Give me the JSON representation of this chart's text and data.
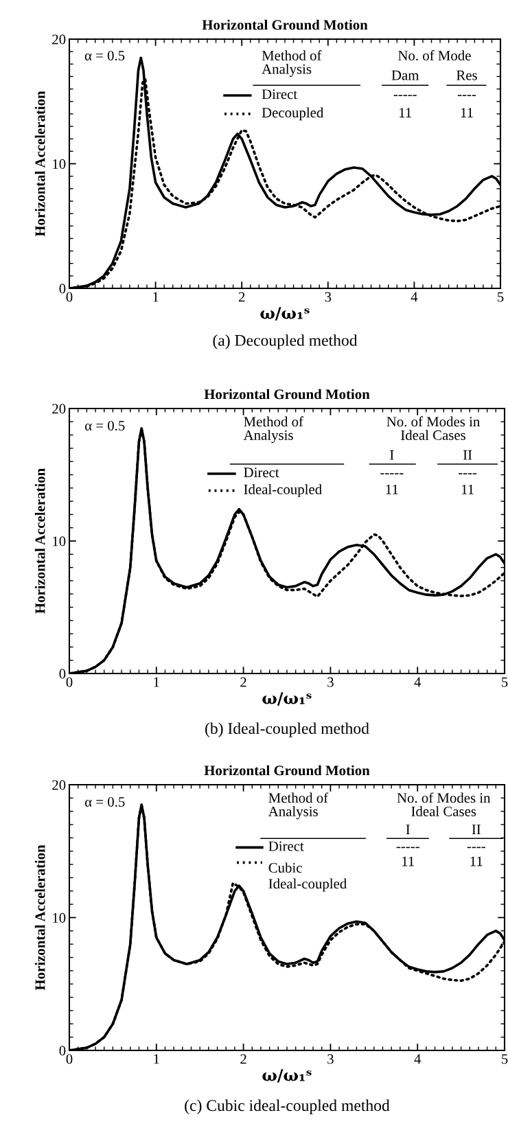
{
  "chart_data": [
    {
      "type": "line",
      "title": "Horizontal Ground Motion",
      "xlabel": "ω/ω₁ˢ",
      "ylabel": "Horizontal Acceleration",
      "annotations": [
        "α = 0.5",
        "Method of\nAnalysis",
        "No. of Mode",
        "Dam",
        "Res",
        "-----",
        "----",
        "11",
        "11",
        "(a) Decoupled method"
      ],
      "xlim": [
        0,
        5
      ],
      "ylim": [
        0,
        20
      ],
      "xticks": [
        0,
        1,
        2,
        3,
        4,
        5
      ],
      "yticks": [
        0,
        10,
        20
      ],
      "grid": false,
      "legend": "top right",
      "series": [
        {
          "name": "Direct",
          "color": "#000000",
          "line_style": "solid",
          "x": [
            0,
            0.2,
            0.3,
            0.4,
            0.5,
            0.6,
            0.7,
            0.75,
            0.8,
            0.83,
            0.86,
            0.9,
            0.95,
            1.0,
            1.1,
            1.2,
            1.35,
            1.5,
            1.6,
            1.7,
            1.8,
            1.9,
            1.95,
            2.0,
            2.1,
            2.2,
            2.3,
            2.4,
            2.5,
            2.6,
            2.7,
            2.75,
            2.8,
            2.85,
            2.9,
            3.0,
            3.1,
            3.2,
            3.3,
            3.4,
            3.5,
            3.6,
            3.7,
            3.8,
            3.9,
            4.0,
            4.1,
            4.2,
            4.3,
            4.4,
            4.5,
            4.6,
            4.7,
            4.8,
            4.9,
            4.95,
            5.0
          ],
          "values": [
            0,
            0.2,
            0.5,
            1.0,
            2.0,
            3.8,
            8.0,
            12.5,
            17.5,
            18.5,
            17.5,
            14,
            10.5,
            8.5,
            7.3,
            6.8,
            6.5,
            6.8,
            7.4,
            8.5,
            10.2,
            12.0,
            12.4,
            12.0,
            10.3,
            8.5,
            7.3,
            6.7,
            6.5,
            6.6,
            6.9,
            6.8,
            6.6,
            6.7,
            7.5,
            8.6,
            9.2,
            9.55,
            9.7,
            9.6,
            9.0,
            8.2,
            7.4,
            6.8,
            6.3,
            6.1,
            5.95,
            5.9,
            5.95,
            6.2,
            6.6,
            7.2,
            8.0,
            8.7,
            9.0,
            8.8,
            8.3
          ]
        },
        {
          "name": "Decoupled",
          "color": "#000000",
          "line_style": "dotted",
          "x": [
            0,
            0.2,
            0.3,
            0.4,
            0.5,
            0.6,
            0.7,
            0.8,
            0.85,
            0.88,
            0.92,
            1.0,
            1.1,
            1.2,
            1.35,
            1.5,
            1.6,
            1.7,
            1.8,
            1.9,
            2.0,
            2.05,
            2.1,
            2.2,
            2.3,
            2.4,
            2.5,
            2.6,
            2.7,
            2.8,
            2.85,
            2.9,
            3.0,
            3.1,
            3.2,
            3.3,
            3.4,
            3.5,
            3.55,
            3.6,
            3.7,
            3.8,
            3.9,
            4.0,
            4.1,
            4.2,
            4.3,
            4.4,
            4.5,
            4.6,
            4.7,
            4.8,
            4.9,
            5.0
          ],
          "values": [
            0,
            0.15,
            0.4,
            0.8,
            1.6,
            3.0,
            6.0,
            12.5,
            16.5,
            16.8,
            14.5,
            10.5,
            8.3,
            7.4,
            6.8,
            6.9,
            7.3,
            8.2,
            9.6,
            11.3,
            12.7,
            12.6,
            11.8,
            9.8,
            8.1,
            7.2,
            6.8,
            6.7,
            6.5,
            5.9,
            5.7,
            6.0,
            6.6,
            7.1,
            7.5,
            7.9,
            8.5,
            9.0,
            9.1,
            8.9,
            8.3,
            7.6,
            7.0,
            6.5,
            6.1,
            5.8,
            5.6,
            5.45,
            5.4,
            5.5,
            5.8,
            6.1,
            6.4,
            6.6
          ]
        }
      ]
    },
    {
      "type": "line",
      "title": "Horizontal Ground Motion",
      "xlabel": "ω/ω₁ˢ",
      "ylabel": "Horizontal Acceleration",
      "annotations": [
        "α = 0.5",
        "Method of\nAnalysis",
        "No. of Modes in\nIdeal Cases",
        "I",
        "II",
        "-----",
        "----",
        "11",
        "11",
        "(b) Ideal-coupled method"
      ],
      "xlim": [
        0,
        5
      ],
      "ylim": [
        0,
        20
      ],
      "xticks": [
        0,
        1,
        2,
        3,
        4,
        5
      ],
      "yticks": [
        0,
        10,
        20
      ],
      "grid": false,
      "legend": "top right",
      "series": [
        {
          "name": "Direct",
          "color": "#000000",
          "line_style": "solid",
          "x": [
            0,
            0.2,
            0.3,
            0.4,
            0.5,
            0.6,
            0.7,
            0.75,
            0.8,
            0.83,
            0.86,
            0.9,
            0.95,
            1.0,
            1.1,
            1.2,
            1.35,
            1.5,
            1.6,
            1.7,
            1.8,
            1.9,
            1.95,
            2.0,
            2.1,
            2.2,
            2.3,
            2.4,
            2.5,
            2.6,
            2.7,
            2.75,
            2.8,
            2.85,
            2.9,
            3.0,
            3.1,
            3.2,
            3.3,
            3.4,
            3.5,
            3.6,
            3.7,
            3.8,
            3.9,
            4.0,
            4.1,
            4.2,
            4.3,
            4.4,
            4.5,
            4.6,
            4.7,
            4.8,
            4.9,
            4.95,
            5.0
          ],
          "values": [
            0,
            0.2,
            0.5,
            1.0,
            2.0,
            3.8,
            8.0,
            12.5,
            17.5,
            18.5,
            17.5,
            14,
            10.5,
            8.5,
            7.3,
            6.8,
            6.5,
            6.8,
            7.4,
            8.5,
            10.2,
            12.0,
            12.4,
            12.0,
            10.3,
            8.5,
            7.3,
            6.7,
            6.5,
            6.6,
            6.9,
            6.8,
            6.6,
            6.7,
            7.5,
            8.6,
            9.2,
            9.55,
            9.7,
            9.6,
            9.0,
            8.2,
            7.4,
            6.8,
            6.3,
            6.1,
            5.95,
            5.9,
            5.95,
            6.2,
            6.6,
            7.2,
            8.0,
            8.7,
            9.0,
            8.8,
            8.3
          ]
        },
        {
          "name": "Ideal-coupled",
          "color": "#000000",
          "line_style": "dotted",
          "x": [
            0,
            0.2,
            0.3,
            0.4,
            0.5,
            0.6,
            0.7,
            0.75,
            0.8,
            0.83,
            0.86,
            0.9,
            0.95,
            1.0,
            1.1,
            1.2,
            1.35,
            1.5,
            1.6,
            1.7,
            1.8,
            1.9,
            1.95,
            2.0,
            2.1,
            2.2,
            2.3,
            2.4,
            2.5,
            2.6,
            2.7,
            2.8,
            2.85,
            2.9,
            3.0,
            3.1,
            3.2,
            3.3,
            3.4,
            3.5,
            3.55,
            3.6,
            3.7,
            3.8,
            3.9,
            4.0,
            4.1,
            4.2,
            4.3,
            4.4,
            4.5,
            4.6,
            4.7,
            4.8,
            4.9,
            5.0
          ],
          "values": [
            0,
            0.2,
            0.5,
            1.0,
            2.0,
            3.8,
            8.0,
            12.5,
            17.5,
            18.4,
            17.5,
            14,
            10.5,
            8.5,
            7.2,
            6.7,
            6.4,
            6.6,
            7.2,
            8.3,
            10.0,
            11.8,
            12.2,
            12.0,
            10.3,
            8.4,
            7.2,
            6.6,
            6.3,
            6.3,
            6.4,
            6.0,
            5.8,
            6.2,
            7.0,
            7.6,
            8.2,
            9.0,
            9.9,
            10.5,
            10.4,
            10.0,
            9.0,
            8.0,
            7.2,
            6.6,
            6.3,
            6.1,
            6.0,
            5.9,
            5.85,
            5.9,
            6.1,
            6.5,
            7.0,
            7.6
          ]
        }
      ]
    },
    {
      "type": "line",
      "title": "Horizontal Ground Motion",
      "xlabel": "ω/ω₁ˢ",
      "ylabel": "Horizontal Acceleration",
      "annotations": [
        "α = 0.5",
        "Method of\nAnalysis",
        "No. of Modes in\nIdeal Cases",
        "I",
        "II",
        "-----",
        "----",
        "11",
        "11",
        "(c) Cubic ideal-coupled method"
      ],
      "xlim": [
        0,
        5
      ],
      "ylim": [
        0,
        20
      ],
      "xticks": [
        0,
        1,
        2,
        3,
        4,
        5
      ],
      "yticks": [
        0,
        10,
        20
      ],
      "grid": false,
      "legend": "top right",
      "series": [
        {
          "name": "Direct",
          "color": "#000000",
          "line_style": "solid",
          "x": [
            0,
            0.2,
            0.3,
            0.4,
            0.5,
            0.6,
            0.7,
            0.75,
            0.8,
            0.83,
            0.86,
            0.9,
            0.95,
            1.0,
            1.1,
            1.2,
            1.35,
            1.5,
            1.6,
            1.7,
            1.8,
            1.9,
            1.95,
            2.0,
            2.1,
            2.2,
            2.3,
            2.4,
            2.5,
            2.6,
            2.7,
            2.75,
            2.8,
            2.85,
            2.9,
            3.0,
            3.1,
            3.2,
            3.3,
            3.4,
            3.5,
            3.6,
            3.7,
            3.8,
            3.9,
            4.0,
            4.1,
            4.2,
            4.3,
            4.4,
            4.5,
            4.6,
            4.7,
            4.8,
            4.9,
            4.95,
            5.0
          ],
          "values": [
            0,
            0.2,
            0.5,
            1.0,
            2.0,
            3.8,
            8.0,
            12.5,
            17.5,
            18.5,
            17.5,
            14,
            10.5,
            8.5,
            7.3,
            6.8,
            6.5,
            6.8,
            7.4,
            8.5,
            10.2,
            12.0,
            12.4,
            12.0,
            10.3,
            8.5,
            7.3,
            6.7,
            6.5,
            6.6,
            6.9,
            6.8,
            6.6,
            6.7,
            7.5,
            8.6,
            9.2,
            9.55,
            9.7,
            9.6,
            9.0,
            8.2,
            7.4,
            6.8,
            6.3,
            6.1,
            5.95,
            5.9,
            5.95,
            6.2,
            6.6,
            7.2,
            8.0,
            8.7,
            9.0,
            8.8,
            8.3
          ]
        },
        {
          "name": "Cubic\nIdeal-coupled",
          "color": "#000000",
          "line_style": "dotted",
          "x": [
            0,
            0.2,
            0.3,
            0.4,
            0.5,
            0.6,
            0.7,
            0.75,
            0.8,
            0.83,
            0.86,
            0.9,
            0.95,
            1.0,
            1.1,
            1.2,
            1.35,
            1.5,
            1.6,
            1.7,
            1.8,
            1.88,
            1.95,
            2.0,
            2.1,
            2.2,
            2.3,
            2.4,
            2.5,
            2.6,
            2.7,
            2.8,
            2.85,
            2.9,
            3.0,
            3.1,
            3.2,
            3.3,
            3.4,
            3.5,
            3.6,
            3.7,
            3.8,
            3.9,
            4.0,
            4.1,
            4.2,
            4.3,
            4.4,
            4.5,
            4.6,
            4.7,
            4.8,
            4.9,
            5.0
          ],
          "values": [
            0,
            0.2,
            0.5,
            1.0,
            2.0,
            3.8,
            8.0,
            12.5,
            17.5,
            18.4,
            17.5,
            14,
            10.5,
            8.5,
            7.3,
            6.8,
            6.5,
            6.7,
            7.3,
            8.4,
            10.2,
            12.6,
            12.3,
            11.9,
            10.1,
            8.3,
            7.1,
            6.5,
            6.3,
            6.4,
            6.6,
            6.4,
            6.5,
            7.2,
            8.3,
            8.9,
            9.3,
            9.5,
            9.5,
            9.0,
            8.2,
            7.4,
            6.8,
            6.2,
            6.0,
            5.8,
            5.6,
            5.4,
            5.3,
            5.25,
            5.4,
            5.8,
            6.4,
            7.2,
            8.2
          ]
        }
      ]
    }
  ]
}
